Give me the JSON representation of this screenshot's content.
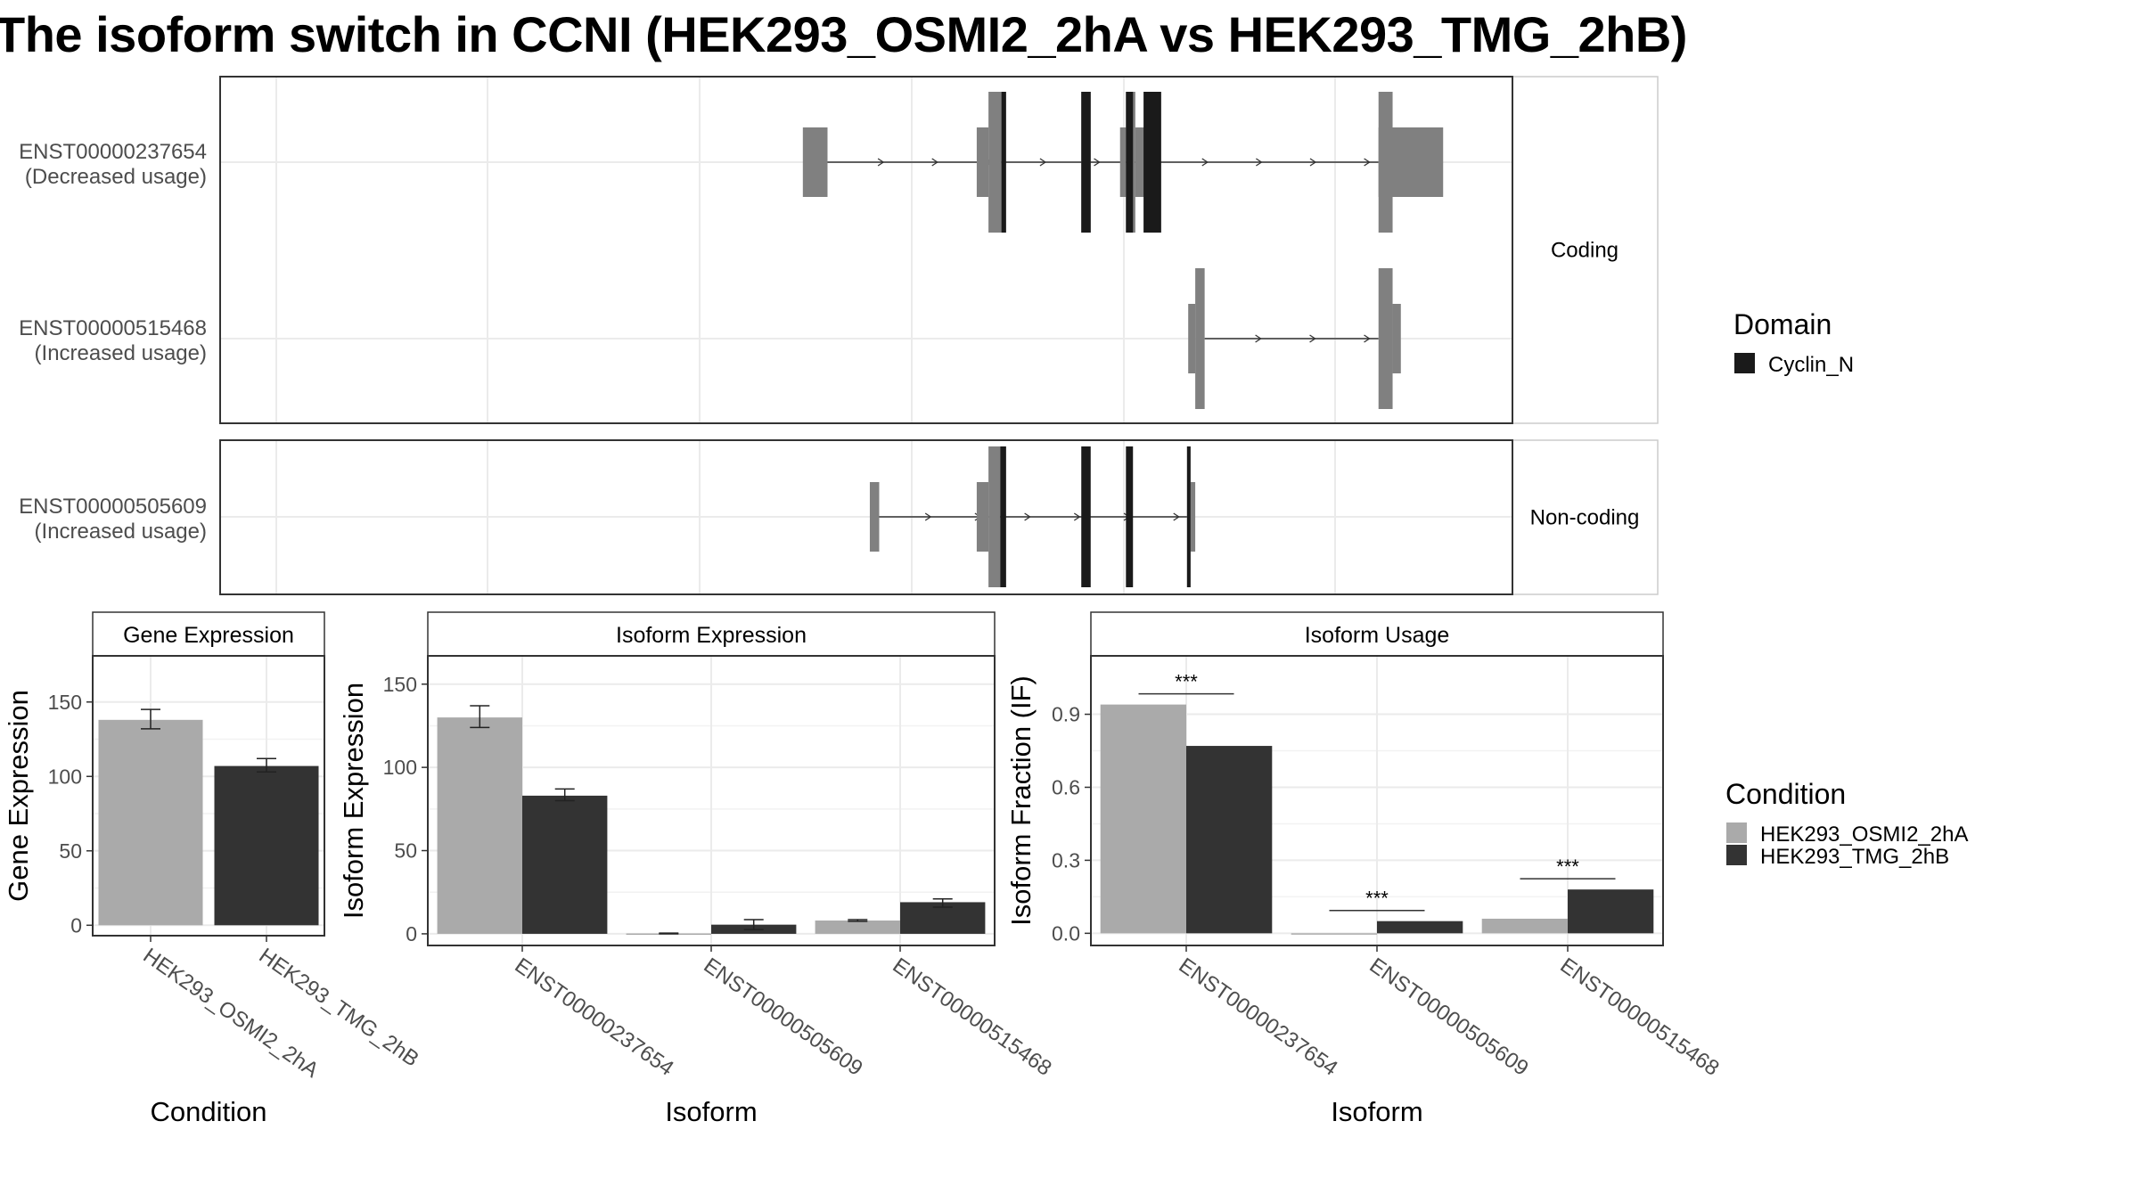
{
  "title": "The isoform switch in CCNI (HEK293_OSMI2_2hA vs HEK293_TMG_2hB)",
  "colors": {
    "condition_a": "#AAAAAA",
    "condition_b": "#333333",
    "exon": "#808080",
    "domain": "#1A1A1A",
    "grid": "#EBEBEB",
    "strip_border": "#CCCCCC"
  },
  "chart_data": [
    {
      "type": "gene-structure",
      "panels": [
        {
          "strip": "Coding",
          "transcripts": [
            {
              "id": "ENST00000237654",
              "usage": "(Decreased usage)",
              "utr_exons": [
                [
                  49.6,
                  51.7
                ],
                [
                  64.4,
                  65.4
                ],
                [
                  76.6,
                  77.1
                ],
                [
                  77.9,
                  79.3
                ],
                [
                  98.6,
                  104.1
                ]
              ],
              "cds_exons": [
                [
                  65.4,
                  66.5
                ],
                [
                  73.3,
                  74.1
                ],
                [
                  77.1,
                  77.9
                ],
                [
                  98.6,
                  99.8
                ]
              ],
              "domain_exons": [
                [
                  66.5,
                  66.9
                ],
                [
                  73.3,
                  74.1
                ],
                [
                  77.1,
                  77.7
                ],
                [
                  78.6,
                  80.1
                ]
              ],
              "intron_start": 51.7,
              "intron_end": 98.6
            },
            {
              "id": "ENST00000515468",
              "usage": "(Increased usage)",
              "utr_exons": [
                [
                  82.4,
                  83.0
                ],
                [
                  99.8,
                  100.5
                ]
              ],
              "cds_exons": [
                [
                  83.0,
                  83.8
                ],
                [
                  98.6,
                  99.8
                ]
              ],
              "domain_exons": [],
              "intron_start": 83.8,
              "intron_end": 98.6
            }
          ]
        },
        {
          "strip": "Non-coding",
          "transcripts": [
            {
              "id": "ENST00000505609",
              "usage": "(Increased usage)",
              "utr_exons": [
                [
                  55.3,
                  56.1
                ],
                [
                  64.4,
                  65.4
                ],
                [
                  82.6,
                  83.0
                ]
              ],
              "cds_exons": [
                [
                  65.4,
                  66.4
                ],
                [
                  82.3,
                  82.6
                ]
              ],
              "domain_exons": [
                [
                  66.4,
                  66.9
                ],
                [
                  73.3,
                  74.1
                ],
                [
                  77.1,
                  77.7
                ],
                [
                  82.3,
                  82.6
                ]
              ],
              "intron_start": 56.1,
              "intron_end": 82.3
            }
          ]
        }
      ],
      "legend": {
        "title": "Domain",
        "items": [
          "Cyclin_N"
        ]
      }
    },
    {
      "type": "bar",
      "strip": "Gene Expression",
      "xlabel": "Condition",
      "ylabel": "Gene Expression",
      "categories": [
        "HEK293_OSMI2_2hA",
        "HEK293_TMG_2hB"
      ],
      "values": [
        138,
        107
      ],
      "error_low": [
        132,
        103
      ],
      "error_high": [
        145,
        112
      ],
      "yticks": [
        0,
        50,
        100,
        150
      ],
      "ylim": [
        -7,
        181
      ]
    },
    {
      "type": "bar",
      "strip": "Isoform Expression",
      "xlabel": "Isoform",
      "ylabel": "Isoform Expression",
      "categories": [
        "ENST00000237654",
        "ENST00000505609",
        "ENST00000515468"
      ],
      "series": [
        {
          "name": "HEK293_OSMI2_2hA",
          "values": [
            130,
            0.2,
            8
          ],
          "error_low": [
            124,
            0,
            7.5
          ],
          "error_high": [
            137,
            0.4,
            8.5
          ]
        },
        {
          "name": "HEK293_TMG_2hB",
          "values": [
            83,
            5.5,
            19
          ],
          "error_low": [
            80,
            2.5,
            16
          ],
          "error_high": [
            87,
            8.5,
            21
          ]
        }
      ],
      "yticks": [
        0,
        50,
        100,
        150
      ],
      "ylim": [
        -7,
        167
      ]
    },
    {
      "type": "bar",
      "strip": "Isoform Usage",
      "xlabel": "Isoform",
      "ylabel": "Isoform Fraction (IF)",
      "categories": [
        "ENST00000237654",
        "ENST00000505609",
        "ENST00000515468"
      ],
      "series": [
        {
          "name": "HEK293_OSMI2_2hA",
          "values": [
            0.94,
            0.0,
            0.06
          ]
        },
        {
          "name": "HEK293_TMG_2hB",
          "values": [
            0.77,
            0.05,
            0.18
          ]
        }
      ],
      "significance": [
        "***",
        "***",
        "***"
      ],
      "yticks": [
        0.0,
        0.3,
        0.6,
        0.9
      ],
      "ylim": [
        -0.05,
        1.14
      ]
    }
  ],
  "legends": {
    "domain": {
      "title": "Domain",
      "items": [
        {
          "label": "Cyclin_N"
        }
      ]
    },
    "condition": {
      "title": "Condition",
      "items": [
        {
          "label": "HEK293_OSMI2_2hA"
        },
        {
          "label": "HEK293_TMG_2hB"
        }
      ]
    }
  }
}
